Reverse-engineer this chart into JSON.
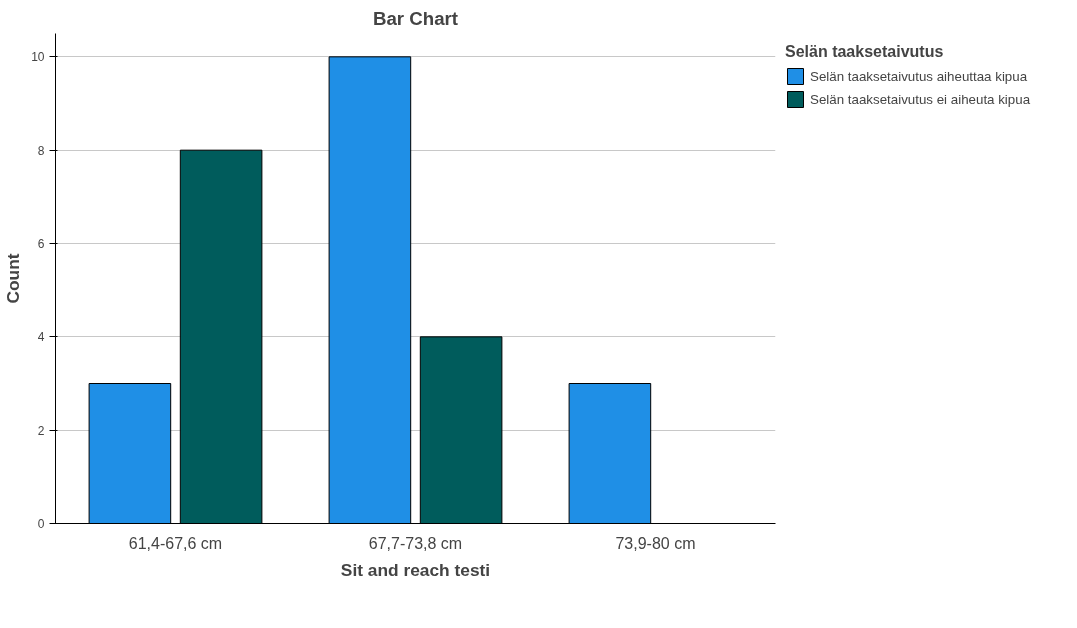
{
  "chart_data": {
    "type": "bar",
    "title": "Bar Chart",
    "xlabel": "Sit and reach testi",
    "ylabel": "Count",
    "legend_title": "Selän taaksetaivutus",
    "categories": [
      "61,4-67,6 cm",
      "67,7-73,8 cm",
      "73,9-80 cm"
    ],
    "series": [
      {
        "name": "Selän taaksetaivutus aiheuttaa kipua",
        "color": "#1f8fe6",
        "values": [
          3,
          10,
          3
        ]
      },
      {
        "name": "Selän taaksetaivutus ei aiheuta kipua",
        "color": "#005c5c",
        "values": [
          8,
          4,
          null
        ]
      }
    ],
    "ylim": [
      0,
      10.5
    ],
    "yticks": [
      0,
      2,
      4,
      6,
      8,
      10
    ],
    "grid": "y",
    "legend": "top right"
  }
}
